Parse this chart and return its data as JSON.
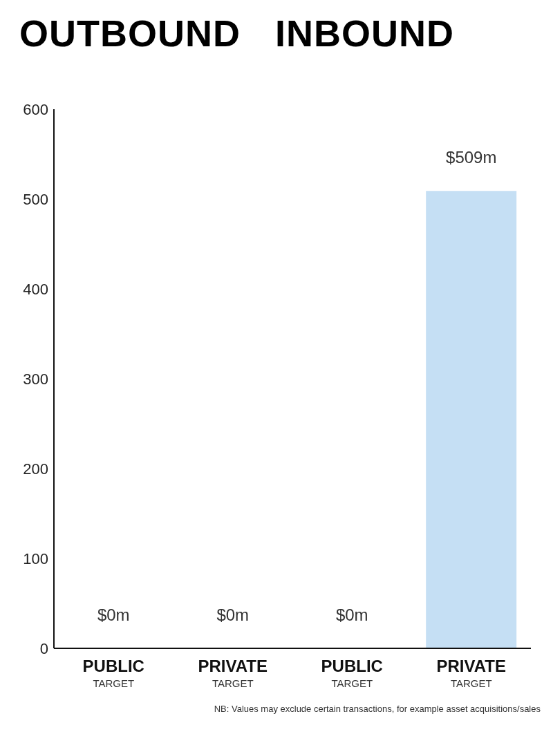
{
  "chart_data": {
    "type": "bar",
    "categories": [
      "PUBLIC\nTARGET",
      "PRIVATE\nTARGET",
      "PUBLIC\nTARGET",
      "PRIVATE\nTARGET"
    ],
    "values": [
      0,
      0,
      0,
      509
    ],
    "value_labels": [
      "$0m",
      "$0m",
      "$0m",
      "$509m"
    ],
    "color": "#c5dff4",
    "ylim": [
      0,
      600
    ],
    "yticks": [
      0,
      100,
      200,
      300,
      400,
      500,
      600
    ],
    "grid": false,
    "annotations": [
      "OUTBOUND",
      "INBOUND",
      "NB: Values may exclude certain transactions, for example asset acquisitions/sales"
    ]
  }
}
